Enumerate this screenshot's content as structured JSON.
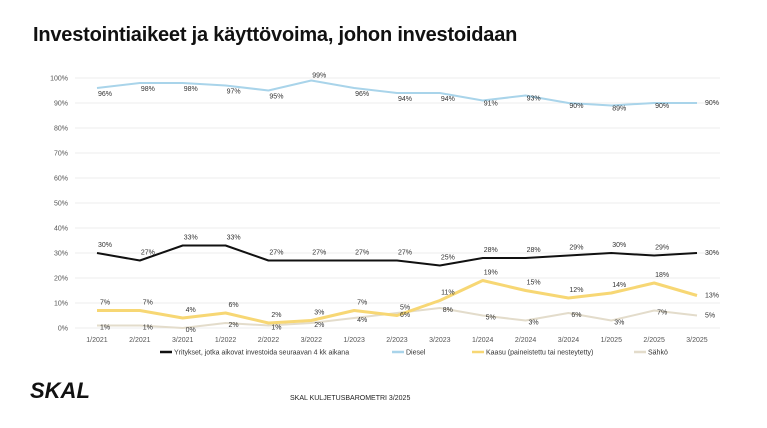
{
  "title": "Investointiaikeet ja käyttövoima, johon investoidaan",
  "footer": "SKAL KULJETUSBAROMETRI 3/2025",
  "logo": "SKAL",
  "chart_data": {
    "type": "line",
    "categories": [
      "1/2021",
      "2/2021",
      "3/2021",
      "1/2022",
      "2/2022",
      "3/2022",
      "1/2023",
      "2/2023",
      "3/2023",
      "1/2024",
      "2/2024",
      "3/2024",
      "1/2025",
      "2/2025",
      "3/2025"
    ],
    "ylim": [
      0,
      100
    ],
    "yticks": [
      0,
      10,
      20,
      30,
      40,
      50,
      60,
      70,
      80,
      90,
      100
    ],
    "ytick_labels": [
      "0%",
      "10%",
      "20%",
      "30%",
      "40%",
      "50%",
      "60%",
      "70%",
      "80%",
      "90%",
      "100%"
    ],
    "grid": true,
    "legend": "bottom",
    "series": [
      {
        "name": "Yritykset, jotka aikovat investoida seuraavan 4 kk aikana",
        "color": "#111111",
        "values": [
          30,
          27,
          33,
          33,
          27,
          27,
          27,
          27,
          25,
          28,
          28,
          29,
          30,
          29,
          30
        ]
      },
      {
        "name": "Diesel",
        "color": "#a9d4ea",
        "values": [
          96,
          98,
          98,
          97,
          95,
          99,
          96,
          94,
          94,
          91,
          93,
          90,
          89,
          90,
          90
        ]
      },
      {
        "name": "Kaasu (paineistettu tai nesteytetty)",
        "color": "#f7d774",
        "values": [
          7,
          7,
          4,
          6,
          2,
          3,
          7,
          5,
          11,
          19,
          15,
          12,
          14,
          18,
          13
        ]
      },
      {
        "name": "Sähkö",
        "color": "#e3dccb",
        "values": [
          1,
          1,
          0,
          2,
          1,
          2,
          4,
          6,
          8,
          5,
          3,
          6,
          3,
          7,
          5
        ]
      }
    ]
  }
}
